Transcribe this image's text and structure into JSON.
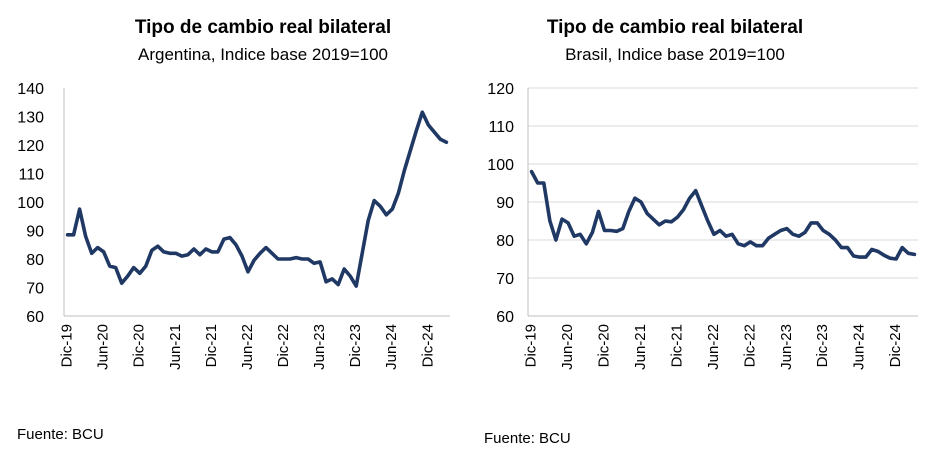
{
  "chart_data": [
    {
      "type": "line",
      "title": "Tipo de cambio real bilateral",
      "subtitle": "Argentina, Indice base 2019=100",
      "ylim": [
        60,
        140
      ],
      "yticks": [
        60,
        70,
        80,
        90,
        100,
        110,
        120,
        130,
        140
      ],
      "xlabels": [
        "Dic-19",
        "Jun-20",
        "Dic-20",
        "Jun-21",
        "Dic-21",
        "Jun-22",
        "Dic-22",
        "Jun-23",
        "Dic-23",
        "Jun-24",
        "Dic-24"
      ],
      "grid": false,
      "color": "#203864",
      "x": [
        "Dic-19",
        "Ene-20",
        "Feb-20",
        "Mar-20",
        "Abr-20",
        "May-20",
        "Jun-20",
        "Jul-20",
        "Ago-20",
        "Sep-20",
        "Oct-20",
        "Nov-20",
        "Dic-20",
        "Ene-21",
        "Feb-21",
        "Mar-21",
        "Abr-21",
        "May-21",
        "Jun-21",
        "Jul-21",
        "Ago-21",
        "Sep-21",
        "Oct-21",
        "Nov-21",
        "Dic-21",
        "Ene-22",
        "Feb-22",
        "Mar-22",
        "Abr-22",
        "May-22",
        "Jun-22",
        "Jul-22",
        "Ago-22",
        "Sep-22",
        "Oct-22",
        "Nov-22",
        "Dic-22",
        "Ene-23",
        "Feb-23",
        "Mar-23",
        "Abr-23",
        "May-23",
        "Jun-23",
        "Jul-23",
        "Ago-23",
        "Sep-23",
        "Oct-23",
        "Nov-23",
        "Dic-23",
        "Ene-24",
        "Feb-24",
        "Mar-24",
        "Abr-24",
        "May-24",
        "Jun-24",
        "Jul-24",
        "Ago-24",
        "Sep-24",
        "Oct-24",
        "Nov-24",
        "Dic-24",
        "Ene-25",
        "Feb-25",
        "Mar-25"
      ],
      "series": [
        {
          "values": [
            88.5,
            88.5,
            97.5,
            88,
            82,
            84,
            82.5,
            77.5,
            77,
            71.5,
            74,
            77,
            75,
            77.5,
            83,
            84.5,
            82.5,
            82,
            82,
            81,
            81.5,
            83.5,
            81.5,
            83.5,
            82.5,
            82.5,
            87,
            87.5,
            85,
            81,
            75.5,
            79.5,
            82,
            84,
            82,
            80,
            80,
            80,
            80.5,
            80,
            80,
            78.5,
            79,
            72,
            73,
            71,
            76.5,
            74,
            70.5,
            82,
            93.5,
            100.5,
            98.5,
            95.5,
            97.5,
            103,
            111,
            118,
            125,
            131.5,
            127,
            124.5,
            122,
            121
          ]
        }
      ],
      "source": "Fuente: BCU"
    },
    {
      "type": "line",
      "title": "Tipo de cambio real bilateral",
      "subtitle": "Brasil, Indice base 2019=100",
      "ylim": [
        60,
        120
      ],
      "yticks": [
        60,
        70,
        80,
        90,
        100,
        110,
        120
      ],
      "xlabels": [
        "Dic-19",
        "Jun-20",
        "Dic-20",
        "Jun-21",
        "Dic-21",
        "Jun-22",
        "Dic-22",
        "Jun-23",
        "Dic-23",
        "Jun-24",
        "Dic-24"
      ],
      "grid": true,
      "color": "#203864",
      "x": [
        "Dic-19",
        "Ene-20",
        "Feb-20",
        "Mar-20",
        "Abr-20",
        "May-20",
        "Jun-20",
        "Jul-20",
        "Ago-20",
        "Sep-20",
        "Oct-20",
        "Nov-20",
        "Dic-20",
        "Ene-21",
        "Feb-21",
        "Mar-21",
        "Abr-21",
        "May-21",
        "Jun-21",
        "Jul-21",
        "Ago-21",
        "Sep-21",
        "Oct-21",
        "Nov-21",
        "Dic-21",
        "Ene-22",
        "Feb-22",
        "Mar-22",
        "Abr-22",
        "May-22",
        "Jun-22",
        "Jul-22",
        "Ago-22",
        "Sep-22",
        "Oct-22",
        "Nov-22",
        "Dic-22",
        "Ene-23",
        "Feb-23",
        "Mar-23",
        "Abr-23",
        "May-23",
        "Jun-23",
        "Jul-23",
        "Ago-23",
        "Sep-23",
        "Oct-23",
        "Nov-23",
        "Dic-23",
        "Ene-24",
        "Feb-24",
        "Mar-24",
        "Abr-24",
        "May-24",
        "Jun-24",
        "Jul-24",
        "Ago-24",
        "Sep-24",
        "Oct-24",
        "Nov-24",
        "Dic-24",
        "Ene-25",
        "Feb-25",
        "Mar-25"
      ],
      "series": [
        {
          "values": [
            98,
            95,
            95,
            85,
            80,
            85.5,
            84.5,
            81,
            81.5,
            79,
            82,
            87.5,
            82.5,
            82.5,
            82.3,
            83,
            87.5,
            91,
            90,
            87,
            85.5,
            84,
            85,
            84.8,
            86,
            88,
            91,
            93,
            89,
            85,
            81.5,
            82.5,
            81,
            81.5,
            79,
            78.5,
            79.5,
            78.5,
            78.5,
            80.5,
            81.5,
            82.5,
            83,
            81.5,
            81,
            82,
            84.5,
            84.5,
            82.5,
            81.5,
            80,
            78,
            78,
            75.8,
            75.5,
            75.5,
            77.5,
            77,
            76,
            75.2,
            75,
            78,
            76.5,
            76.2
          ]
        }
      ],
      "source": "Fuente: BCU"
    }
  ]
}
